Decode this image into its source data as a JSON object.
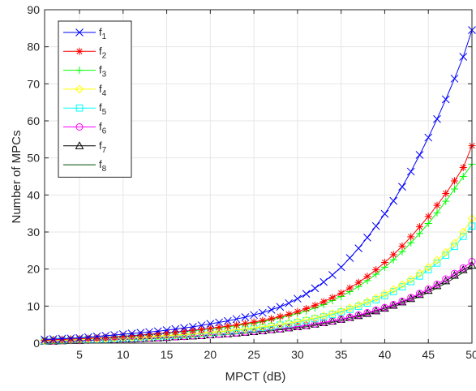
{
  "chart_data": {
    "type": "line",
    "xlabel": "MPCT (dB)",
    "ylabel": "Number of MPCs",
    "xlim": [
      1,
      50
    ],
    "ylim": [
      0,
      90
    ],
    "xticks": [
      5,
      10,
      15,
      20,
      25,
      30,
      35,
      40,
      45,
      50
    ],
    "yticks": [
      0,
      10,
      20,
      30,
      40,
      50,
      60,
      70,
      80,
      90
    ],
    "grid": true,
    "legend_position": "top-left",
    "x": [
      1,
      2,
      3,
      4,
      5,
      6,
      7,
      8,
      9,
      10,
      11,
      12,
      13,
      14,
      15,
      16,
      17,
      18,
      19,
      20,
      21,
      22,
      23,
      24,
      25,
      26,
      27,
      28,
      29,
      30,
      31,
      32,
      33,
      34,
      35,
      36,
      37,
      38,
      39,
      40,
      41,
      42,
      43,
      44,
      45,
      46,
      47,
      48,
      49,
      50
    ],
    "series": [
      {
        "name": "1",
        "color": "#0000ff",
        "marker": "x",
        "values": [
          1.0,
          1.1,
          1.2,
          1.3,
          1.4,
          1.6,
          1.8,
          2.0,
          2.2,
          2.4,
          2.6,
          2.8,
          3.0,
          3.2,
          3.5,
          3.8,
          4.1,
          4.4,
          4.8,
          5.2,
          5.6,
          6.0,
          6.5,
          7.0,
          7.6,
          8.2,
          9.0,
          9.8,
          10.8,
          12.0,
          13.3,
          14.8,
          16.5,
          18.4,
          20.5,
          23.0,
          25.6,
          28.5,
          31.6,
          34.9,
          38.4,
          42.2,
          46.3,
          50.8,
          55.5,
          60.5,
          65.8,
          71.4,
          77.3,
          84.5
        ]
      },
      {
        "name": "2",
        "color": "#ff0000",
        "marker": "asterisk",
        "values": [
          0.8,
          0.9,
          1.0,
          1.1,
          1.2,
          1.3,
          1.4,
          1.5,
          1.7,
          1.9,
          2.0,
          2.2,
          2.4,
          2.6,
          2.8,
          3.0,
          3.2,
          3.5,
          3.7,
          4.0,
          4.3,
          4.6,
          4.9,
          5.3,
          5.7,
          6.1,
          6.6,
          7.2,
          7.8,
          8.5,
          9.3,
          10.2,
          11.2,
          12.3,
          13.5,
          14.9,
          16.4,
          18.0,
          19.8,
          21.8,
          23.9,
          26.2,
          28.7,
          31.4,
          34.2,
          37.2,
          40.4,
          43.8,
          47.4,
          53.3
        ]
      },
      {
        "name": "3",
        "color": "#00ff00",
        "marker": "plus",
        "values": [
          0.8,
          0.9,
          1.0,
          1.1,
          1.2,
          1.3,
          1.4,
          1.5,
          1.6,
          1.8,
          1.9,
          2.1,
          2.3,
          2.5,
          2.7,
          2.9,
          3.1,
          3.3,
          3.6,
          3.9,
          4.1,
          4.4,
          4.7,
          5.1,
          5.4,
          5.8,
          6.3,
          6.8,
          7.4,
          8.0,
          8.7,
          9.5,
          10.4,
          11.5,
          12.6,
          13.9,
          15.3,
          16.9,
          18.6,
          20.5,
          22.5,
          24.7,
          27.1,
          29.6,
          32.3,
          35.2,
          38.3,
          41.6,
          45.0,
          48.3
        ]
      },
      {
        "name": "4",
        "color": "#ffff00",
        "marker": "diamond",
        "values": [
          0.6,
          0.7,
          0.7,
          0.8,
          0.9,
          1.0,
          1.1,
          1.2,
          1.3,
          1.4,
          1.5,
          1.6,
          1.7,
          1.9,
          2.0,
          2.2,
          2.3,
          2.5,
          2.7,
          2.9,
          3.1,
          3.3,
          3.6,
          3.8,
          4.1,
          4.4,
          4.7,
          5.0,
          5.4,
          5.8,
          6.3,
          6.8,
          7.4,
          8.0,
          8.7,
          9.5,
          10.3,
          11.2,
          12.2,
          13.3,
          14.5,
          15.8,
          17.2,
          18.8,
          20.5,
          22.4,
          24.5,
          27.0,
          30.0,
          33.6
        ]
      },
      {
        "name": "5",
        "color": "#00ffff",
        "marker": "square",
        "values": [
          0.6,
          0.7,
          0.7,
          0.8,
          0.9,
          1.0,
          1.0,
          1.1,
          1.2,
          1.3,
          1.4,
          1.5,
          1.7,
          1.8,
          1.9,
          2.1,
          2.2,
          2.4,
          2.6,
          2.8,
          3.0,
          3.2,
          3.4,
          3.7,
          3.9,
          4.2,
          4.5,
          4.9,
          5.2,
          5.6,
          6.1,
          6.6,
          7.1,
          7.7,
          8.4,
          9.1,
          9.9,
          10.8,
          11.7,
          12.8,
          13.9,
          15.2,
          16.6,
          18.1,
          19.8,
          21.6,
          23.7,
          26.1,
          28.8,
          31.6
        ]
      },
      {
        "name": "6",
        "color": "#ff00ff",
        "marker": "circle",
        "values": [
          0.5,
          0.5,
          0.6,
          0.7,
          0.7,
          0.8,
          0.9,
          0.9,
          1.0,
          1.1,
          1.2,
          1.3,
          1.4,
          1.5,
          1.6,
          1.7,
          1.8,
          2.0,
          2.1,
          2.3,
          2.4,
          2.6,
          2.8,
          3.0,
          3.2,
          3.4,
          3.7,
          3.9,
          4.2,
          4.5,
          4.8,
          5.2,
          5.6,
          6.0,
          6.5,
          7.0,
          7.6,
          8.2,
          8.9,
          9.6,
          10.4,
          11.3,
          12.3,
          13.4,
          14.6,
          15.9,
          17.3,
          18.8,
          20.3,
          22.0
        ]
      },
      {
        "name": "7",
        "color": "#000000",
        "marker": "triangle",
        "values": [
          0.5,
          0.5,
          0.6,
          0.7,
          0.7,
          0.8,
          0.9,
          0.9,
          1.0,
          1.1,
          1.1,
          1.2,
          1.3,
          1.4,
          1.5,
          1.7,
          1.8,
          1.9,
          2.0,
          2.2,
          2.4,
          2.5,
          2.7,
          2.9,
          3.1,
          3.3,
          3.6,
          3.8,
          4.1,
          4.4,
          4.7,
          5.1,
          5.5,
          5.9,
          6.4,
          6.9,
          7.4,
          8.0,
          8.7,
          9.4,
          10.2,
          11.1,
          12.0,
          13.1,
          14.2,
          15.5,
          16.8,
          18.3,
          19.8,
          21.0
        ]
      },
      {
        "name": "8",
        "color": "#004d00",
        "marker": "none",
        "values": [
          0.4,
          0.5,
          0.5,
          0.6,
          0.6,
          0.7,
          0.8,
          0.8,
          0.9,
          1.0,
          1.1,
          1.1,
          1.2,
          1.3,
          1.4,
          1.5,
          1.6,
          1.8,
          1.9,
          2.0,
          2.2,
          2.3,
          2.5,
          2.7,
          2.9,
          3.1,
          3.3,
          3.6,
          3.8,
          4.1,
          4.4,
          4.8,
          5.2,
          5.6,
          6.0,
          6.5,
          7.1,
          7.7,
          8.3,
          9.0,
          9.8,
          10.7,
          11.6,
          12.6,
          13.7,
          14.9,
          16.2,
          17.6,
          19.1,
          20.6
        ]
      }
    ]
  }
}
